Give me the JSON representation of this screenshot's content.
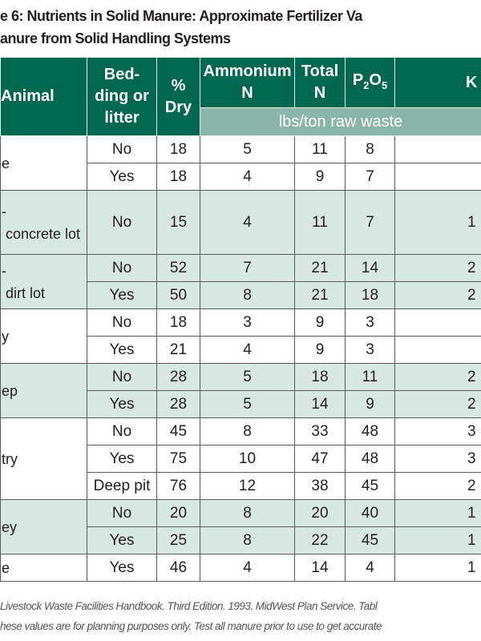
{
  "title_line1": "e 6: Nutrients in Solid Manure: Approximate Fertilizer Va",
  "title_line2": "anure from Solid Handling Systems",
  "header": {
    "animal": "Animal",
    "bedding": "Bed-\nding or\nlitter",
    "dry": "%\nDry",
    "ammonium": "Ammonium\nN",
    "total_n": "Total\nN",
    "p2o5_main": "P",
    "p2o5_sub1": "2",
    "p2o5_mid": "O",
    "p2o5_sub2": "5",
    "k": "K",
    "units": "lbs/ton raw waste"
  },
  "colors": {
    "header": "#00674f",
    "units_band": "#8ab5a8",
    "shaded_row": "#d9e7e2"
  },
  "groups": [
    {
      "animal": "e",
      "shaded": false,
      "rows": [
        {
          "bedding": "No",
          "dry": "18",
          "ammonium": "5",
          "total_n": "11",
          "p2o5": "8",
          "k": ""
        },
        {
          "bedding": "Yes",
          "dry": "18",
          "ammonium": "4",
          "total_n": "9",
          "p2o5": "7",
          "k": ""
        }
      ]
    },
    {
      "animal": "-\n concrete lot",
      "shaded": true,
      "tall": true,
      "rows": [
        {
          "bedding": "No",
          "dry": "15",
          "ammonium": "4",
          "total_n": "11",
          "p2o5": "7",
          "k": "1"
        }
      ]
    },
    {
      "animal": "-\n dirt lot",
      "shaded": true,
      "rows": [
        {
          "bedding": "No",
          "dry": "52",
          "ammonium": "7",
          "total_n": "21",
          "p2o5": "14",
          "k": "2"
        },
        {
          "bedding": "Yes",
          "dry": "50",
          "ammonium": "8",
          "total_n": "21",
          "p2o5": "18",
          "k": "2"
        }
      ]
    },
    {
      "animal": "y",
      "shaded": false,
      "rows": [
        {
          "bedding": "No",
          "dry": "18",
          "ammonium": "3",
          "total_n": "9",
          "p2o5": "3",
          "k": ""
        },
        {
          "bedding": "Yes",
          "dry": "21",
          "ammonium": "4",
          "total_n": "9",
          "p2o5": "3",
          "k": ""
        }
      ]
    },
    {
      "animal": "ep",
      "shaded": true,
      "rows": [
        {
          "bedding": "No",
          "dry": "28",
          "ammonium": "5",
          "total_n": "18",
          "p2o5": "11",
          "k": "2"
        },
        {
          "bedding": "Yes",
          "dry": "28",
          "ammonium": "5",
          "total_n": "14",
          "p2o5": "9",
          "k": "2"
        }
      ]
    },
    {
      "animal": "try",
      "shaded": false,
      "rows": [
        {
          "bedding": "No",
          "dry": "45",
          "ammonium": "8",
          "total_n": "33",
          "p2o5": "48",
          "k": "3"
        },
        {
          "bedding": "Yes",
          "dry": "75",
          "ammonium": "10",
          "total_n": "47",
          "p2o5": "48",
          "k": "3"
        },
        {
          "bedding": "Deep pit",
          "dry": "76",
          "ammonium": "12",
          "total_n": "38",
          "p2o5": "45",
          "k": "2"
        }
      ]
    },
    {
      "animal": "ey",
      "shaded": true,
      "rows": [
        {
          "bedding": "No",
          "dry": "20",
          "ammonium": "8",
          "total_n": "20",
          "p2o5": "40",
          "k": "1"
        },
        {
          "bedding": "Yes",
          "dry": "25",
          "ammonium": "8",
          "total_n": "22",
          "p2o5": "45",
          "k": "1"
        }
      ]
    },
    {
      "animal": "e",
      "shaded": false,
      "rows": [
        {
          "bedding": "Yes",
          "dry": "46",
          "ammonium": "4",
          "total_n": "14",
          "p2o5": "4",
          "k": "1"
        }
      ]
    }
  ],
  "footer_line1": " Livestock Waste Facilities Handbook. Third Edition. 1993. MidWest Plan Service. Tabl",
  "footer_line2": "hese values are for planning purposes only. Test all manure prior to use to get accurate"
}
